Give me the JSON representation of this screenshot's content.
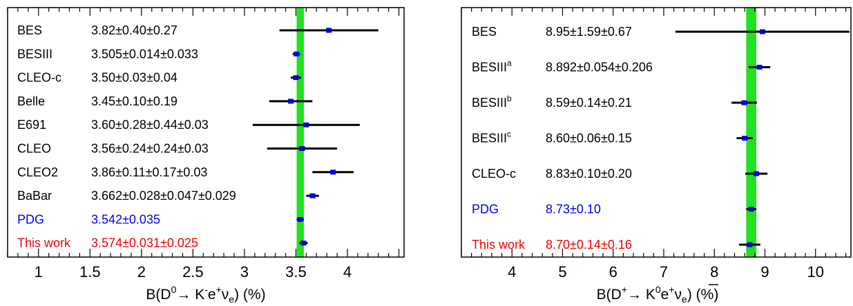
{
  "chart_data": [
    {
      "type": "scatter",
      "x_axis_title": {
        "prefix": "B(D",
        "sup1": "0",
        "arrow": "→ K",
        "sup2": "-",
        "mid": "e",
        "sup3": "+",
        "nu": "ν",
        "sub": "e",
        "suffix": ") (%)"
      },
      "xlim": [
        0.7,
        4.55
      ],
      "ticks": [
        "1",
        "1.5",
        "2",
        "2.5",
        "3",
        "3.5",
        "4"
      ],
      "band": {
        "center": 3.542,
        "half_width": 0.035,
        "color": "#22e022"
      },
      "entries": [
        {
          "label": "BES",
          "label_sup": "",
          "value_text": "3.82±0.40±0.27",
          "value": 3.82,
          "err_low": 0.48,
          "err_high": 0.48,
          "color": "#000000"
        },
        {
          "label": "BESIII",
          "label_sup": "",
          "value_text": "3.505±0.014±0.033",
          "value": 3.505,
          "err_low": 0.036,
          "err_high": 0.036,
          "color": "#000000"
        },
        {
          "label": "CLEO-c",
          "label_sup": "",
          "value_text": "3.50±0.03±0.04",
          "value": 3.5,
          "err_low": 0.05,
          "err_high": 0.05,
          "color": "#000000"
        },
        {
          "label": "Belle",
          "label_sup": "",
          "value_text": "3.45±0.10±0.19",
          "value": 3.45,
          "err_low": 0.21,
          "err_high": 0.21,
          "color": "#000000"
        },
        {
          "label": "E691",
          "label_sup": "",
          "value_text": "3.60±0.28±0.44±0.03",
          "value": 3.6,
          "err_low": 0.52,
          "err_high": 0.52,
          "color": "#000000"
        },
        {
          "label": "CLEO",
          "label_sup": "",
          "value_text": "3.56±0.24±0.24±0.03",
          "value": 3.56,
          "err_low": 0.34,
          "err_high": 0.34,
          "color": "#000000"
        },
        {
          "label": "CLEO2",
          "label_sup": "",
          "value_text": "3.86±0.11±0.17±0.03",
          "value": 3.86,
          "err_low": 0.2,
          "err_high": 0.2,
          "color": "#000000"
        },
        {
          "label": "BaBar",
          "label_sup": "",
          "value_text": "3.662±0.028±0.047±0.029",
          "value": 3.662,
          "err_low": 0.062,
          "err_high": 0.062,
          "color": "#000000"
        },
        {
          "label": "PDG",
          "label_sup": "",
          "value_text": "3.542±0.035",
          "value": 3.542,
          "err_low": 0.035,
          "err_high": 0.035,
          "color": "#0000ee"
        },
        {
          "label": "This work",
          "label_sup": "",
          "value_text": "3.574±0.031±0.025",
          "value": 3.574,
          "err_low": 0.04,
          "err_high": 0.04,
          "color": "#ee0000"
        }
      ]
    },
    {
      "type": "scatter",
      "x_axis_title": {
        "prefix": "B(D",
        "sup1": "+",
        "arrow": "→ K",
        "sup2": "0",
        "mid": "e",
        "sup3": "+",
        "nu": "ν",
        "sub": "e",
        "suffix": ") (%)"
      },
      "xlim": [
        3.0,
        10.7
      ],
      "ticks": [
        "4",
        "5",
        "6",
        "7",
        "8",
        "9",
        "10"
      ],
      "band": {
        "center": 8.73,
        "half_width": 0.1,
        "color": "#22e022"
      },
      "entries": [
        {
          "label": "BES",
          "label_sup": "",
          "value_text": "8.95±1.59±0.67",
          "value": 8.95,
          "err_low": 1.72,
          "err_high": 1.72,
          "color": "#000000"
        },
        {
          "label": "BESIII",
          "label_sup": "a",
          "value_text": "8.892±0.054±0.206",
          "value": 8.892,
          "err_low": 0.213,
          "err_high": 0.213,
          "color": "#000000"
        },
        {
          "label": "BESIII",
          "label_sup": "b",
          "value_text": "8.59±0.14±0.21",
          "value": 8.59,
          "err_low": 0.25,
          "err_high": 0.25,
          "color": "#000000"
        },
        {
          "label": "BESIII",
          "label_sup": "c",
          "value_text": "8.60±0.06±0.15",
          "value": 8.6,
          "err_low": 0.16,
          "err_high": 0.16,
          "color": "#000000"
        },
        {
          "label": "CLEO-c",
          "label_sup": "",
          "value_text": "8.83±0.10±0.20",
          "value": 8.83,
          "err_low": 0.22,
          "err_high": 0.22,
          "color": "#000000"
        },
        {
          "label": "PDG",
          "label_sup": "",
          "value_text": "8.73±0.10",
          "value": 8.73,
          "err_low": 0.1,
          "err_high": 0.1,
          "color": "#0000ee"
        },
        {
          "label": "This work",
          "label_sup": "",
          "value_text": "8.70±0.14±0.16",
          "value": 8.7,
          "err_low": 0.21,
          "err_high": 0.21,
          "color": "#ee0000"
        }
      ]
    }
  ]
}
